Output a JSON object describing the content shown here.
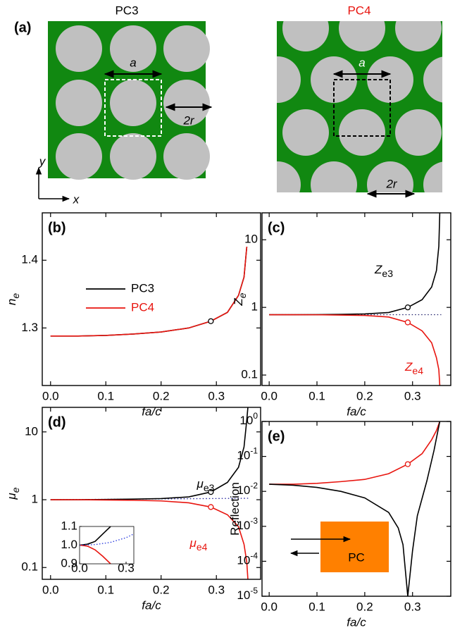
{
  "figure_a": {
    "label": "(a)",
    "pc3": "PC3",
    "pc4": "PC4",
    "lattice_constant": "a",
    "diameter": "2r",
    "axis_x": "x",
    "axis_y": "y"
  },
  "chart_data": [
    {
      "type": "line",
      "panel_label": "(b)",
      "xlabel": "fa/c",
      "ylabel": "n",
      "ylabel_subscript": "e",
      "xlim": [
        -0.015,
        0.38
      ],
      "xticks": [
        {
          "value": 0,
          "label": "0.0"
        },
        0.1,
        0.2,
        0.3
      ],
      "ylim": [
        1.215,
        1.47
      ],
      "yticks": [
        1.3,
        1.4
      ],
      "log_y": false,
      "legend": true,
      "series": [
        {
          "name": "PC3",
          "color": "#000000",
          "x": [
            0,
            0.05,
            0.1,
            0.15,
            0.2,
            0.25,
            0.29,
            0.32,
            0.34,
            0.35,
            0.355
          ],
          "values": [
            1.288,
            1.288,
            1.289,
            1.291,
            1.294,
            1.3,
            1.31,
            1.323,
            1.348,
            1.375,
            1.42
          ]
        },
        {
          "name": "PC4",
          "color": "#e8150f",
          "x": [
            0,
            0.05,
            0.1,
            0.15,
            0.2,
            0.25,
            0.29,
            0.32,
            0.34,
            0.35,
            0.355
          ],
          "values": [
            1.288,
            1.288,
            1.289,
            1.291,
            1.294,
            1.3,
            1.31,
            1.323,
            1.348,
            1.375,
            1.42
          ]
        }
      ],
      "markers": [
        {
          "x": 0.29,
          "y": 1.31,
          "color": "#000000"
        }
      ]
    },
    {
      "type": "line",
      "panel_label": "(c)",
      "xlabel": "fa/c",
      "ylabel": "Z",
      "ylabel_subscript": "e",
      "xlim": [
        -0.015,
        0.38
      ],
      "xticks": [
        {
          "value": 0,
          "label": "0.0"
        },
        0.1,
        0.2,
        0.3
      ],
      "ylim": [
        0.07,
        25
      ],
      "yticks": [
        0.1,
        1,
        10
      ],
      "log_y": true,
      "series": [
        {
          "color": "#000000",
          "x": [
            0,
            0.05,
            0.1,
            0.15,
            0.2,
            0.25,
            0.29,
            0.32,
            0.34,
            0.35,
            0.355,
            0.357
          ],
          "values": [
            0.78,
            0.78,
            0.782,
            0.79,
            0.8,
            0.84,
            1.0,
            1.3,
            2.0,
            3.5,
            8,
            25
          ]
        },
        {
          "color": "#e8150f",
          "x": [
            0,
            0.05,
            0.1,
            0.15,
            0.2,
            0.25,
            0.29,
            0.32,
            0.34,
            0.35,
            0.355,
            0.357
          ],
          "values": [
            0.78,
            0.78,
            0.778,
            0.77,
            0.76,
            0.72,
            0.6,
            0.45,
            0.3,
            0.18,
            0.12,
            0.07
          ]
        }
      ],
      "reference_lines": [
        {
          "color": "#1a1a66",
          "x": [
            0,
            0.36
          ],
          "values": [
            0.78,
            0.78
          ]
        }
      ],
      "markers": [
        {
          "x": 0.29,
          "y": 1.0,
          "color": "#000000"
        },
        {
          "x": 0.29,
          "y": 0.6,
          "color": "#e8150f"
        }
      ],
      "annotations": [
        {
          "text": "Z",
          "subscript": "e3",
          "color": "#000000"
        },
        {
          "text": "Z",
          "subscript": "e4",
          "color": "#e8150f"
        }
      ]
    },
    {
      "type": "line",
      "panel_label": "(d)",
      "xlabel": "fa/c",
      "ylabel": "μ",
      "ylabel_subscript": "e",
      "xlim": [
        -0.015,
        0.38
      ],
      "xticks": [
        {
          "value": 0,
          "label": "0.0"
        },
        0.1,
        0.2,
        0.3
      ],
      "ylim": [
        0.067,
        23
      ],
      "yticks": [
        0.1,
        1,
        10
      ],
      "log_y": true,
      "series": [
        {
          "color": "#000000",
          "x": [
            0,
            0.05,
            0.1,
            0.15,
            0.2,
            0.25,
            0.29,
            0.32,
            0.34,
            0.35,
            0.355,
            0.357
          ],
          "values": [
            1.0,
            1.0,
            1.01,
            1.02,
            1.04,
            1.1,
            1.3,
            1.8,
            3,
            6,
            15,
            23
          ]
        },
        {
          "color": "#e8150f",
          "x": [
            0,
            0.05,
            0.1,
            0.15,
            0.2,
            0.25,
            0.29,
            0.32,
            0.34,
            0.35,
            0.355,
            0.357
          ],
          "values": [
            1.0,
            1.0,
            0.99,
            0.98,
            0.96,
            0.9,
            0.78,
            0.6,
            0.4,
            0.22,
            0.12,
            0.067
          ]
        }
      ],
      "reference_lines": [
        {
          "color": "#1a1a99",
          "x": [
            0,
            0.36
          ],
          "values": [
            1.0,
            1.05
          ]
        }
      ],
      "markers": [
        {
          "x": 0.29,
          "y": 1.3,
          "color": "#000000"
        },
        {
          "x": 0.29,
          "y": 0.78,
          "color": "#e8150f"
        }
      ],
      "annotations": [
        {
          "text": "μ",
          "subscript": "e3",
          "color": "#000000"
        },
        {
          "text": "μ",
          "subscript": "e4",
          "color": "#e8150f"
        }
      ],
      "inset": {
        "xlim": [
          0,
          0.35
        ],
        "ylim": [
          0.9,
          1.1
        ],
        "xticks": [
          {
            "value": 0,
            "label": "0.0"
          },
          0.3
        ],
        "yticks": [
          {
            "value": 0.9,
            "label": "0.9"
          },
          {
            "value": 1.0,
            "label": "1.0"
          },
          {
            "value": 1.1,
            "label": "1.1"
          }
        ],
        "series": [
          {
            "color": "#000000",
            "x": [
              0,
              0.05,
              0.1,
              0.15,
              0.2
            ],
            "values": [
              1.0,
              1.005,
              1.02,
              1.06,
              1.1
            ]
          },
          {
            "color": "#e8150f",
            "x": [
              0,
              0.05,
              0.1,
              0.15,
              0.2
            ],
            "values": [
              1.0,
              0.995,
              0.975,
              0.94,
              0.9
            ]
          },
          {
            "color": "#2233dd",
            "dotted": true,
            "x": [
              0,
              0.1,
              0.2,
              0.3,
              0.35
            ],
            "values": [
              1.0,
              1.003,
              1.015,
              1.04,
              1.06
            ]
          }
        ]
      }
    },
    {
      "type": "line",
      "panel_label": "(e)",
      "xlabel": "fa/c",
      "ylabel": "Reflection",
      "xlim": [
        -0.015,
        0.38
      ],
      "xticks": [
        {
          "value": 0,
          "label": "0.0"
        },
        0.1,
        0.2,
        0.3
      ],
      "ylim": [
        1e-05,
        1
      ],
      "log_y": true,
      "yticks": [
        {
          "value": 1,
          "label": "10",
          "exponent": "0"
        },
        {
          "value": 0.1,
          "label": "10",
          "exponent": "-1"
        },
        {
          "value": 0.01,
          "label": "10",
          "exponent": "-2"
        },
        {
          "value": 0.001,
          "label": "10",
          "exponent": "-3"
        },
        {
          "value": 0.0001,
          "label": "10",
          "exponent": "-4"
        },
        {
          "value": 1e-05,
          "label": "10",
          "exponent": "-5"
        }
      ],
      "series": [
        {
          "color": "#e8150f",
          "x": [
            0,
            0.05,
            0.1,
            0.15,
            0.2,
            0.25,
            0.29,
            0.32,
            0.34,
            0.35,
            0.357
          ],
          "values": [
            0.016,
            0.016,
            0.017,
            0.019,
            0.022,
            0.032,
            0.06,
            0.12,
            0.3,
            0.55,
            1
          ]
        },
        {
          "color": "#000000",
          "x": [
            0,
            0.05,
            0.1,
            0.15,
            0.2,
            0.25,
            0.27,
            0.28,
            0.29,
            0.3,
            0.31,
            0.33,
            0.345,
            0.357
          ],
          "values": [
            0.016,
            0.015,
            0.013,
            0.01,
            0.0065,
            0.0025,
            0.0009,
            0.0003,
            1e-05,
            0.0002,
            0.002,
            0.02,
            0.15,
            1
          ]
        }
      ],
      "markers": [
        {
          "x": 0.29,
          "y": 0.06,
          "color": "#e8150f"
        }
      ],
      "inset_label": "PC"
    }
  ]
}
